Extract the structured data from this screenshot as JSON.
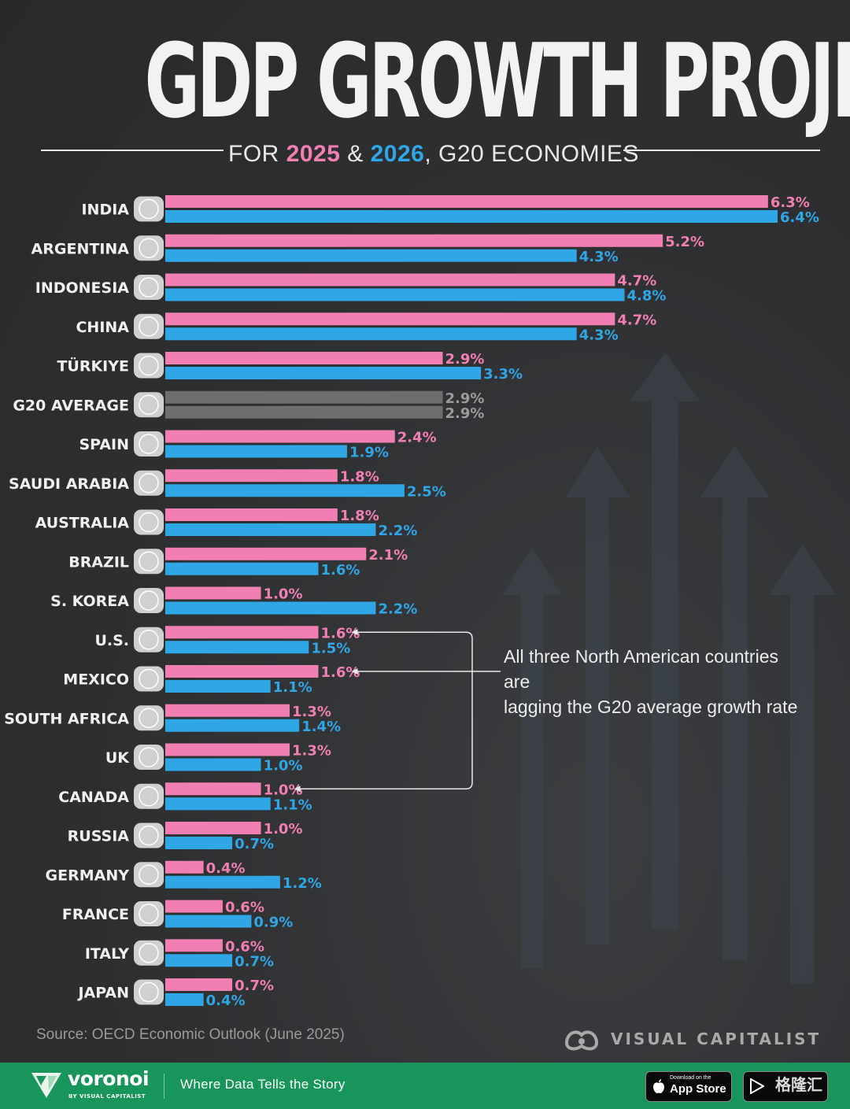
{
  "title": "GDP GROWTH PROJECTIONS",
  "subtitle": {
    "prefix": "FOR ",
    "year1": "2025",
    "amp": " & ",
    "year2": "2026",
    "suffix": ",  G20 ECONOMIES"
  },
  "colors": {
    "y2025": "#f17fb3",
    "y2026": "#2fa6e6",
    "average": "#6e6e6e",
    "average_label": "#9b9b9b"
  },
  "annotation": {
    "line1": "All three North American countries are",
    "line2": "lagging the G20 average growth rate"
  },
  "source": "Source: OECD Economic Outlook (June 2025)",
  "brand": {
    "name": "VISUAL CAPITALIST"
  },
  "footer": {
    "logo_name": "voronoi",
    "logo_sub": "BY VISUAL CAPITALIST",
    "tagline": "Where Data Tells the Story",
    "appstore_small": "Download on the",
    "appstore_big": "App Store",
    "watermark": "格隆汇"
  },
  "chart_data": {
    "type": "bar",
    "orientation": "horizontal",
    "title": "GDP GROWTH PROJECTIONS",
    "subtitle": "FOR 2025 & 2026, G20 ECONOMIES",
    "categories": [
      "INDIA",
      "ARGENTINA",
      "INDONESIA",
      "CHINA",
      "TÜRKIYE",
      "G20 AVERAGE",
      "SPAIN",
      "SAUDI ARABIA",
      "AUSTRALIA",
      "BRAZIL",
      "S. KOREA",
      "U.S.",
      "MEXICO",
      "SOUTH AFRICA",
      "UK",
      "CANADA",
      "RUSSIA",
      "GERMANY",
      "FRANCE",
      "ITALY",
      "JAPAN"
    ],
    "flags": [
      "india",
      "argentina",
      "indonesia",
      "china",
      "turkiye",
      "globe",
      "spain",
      "saudi-arabia",
      "australia",
      "brazil",
      "south-korea",
      "usa",
      "mexico",
      "south-africa",
      "uk",
      "canada",
      "russia",
      "germany",
      "france",
      "italy",
      "japan"
    ],
    "series": [
      {
        "name": "2025",
        "values": [
          6.3,
          5.2,
          4.7,
          4.7,
          2.9,
          2.9,
          2.4,
          1.8,
          1.8,
          2.1,
          1.0,
          1.6,
          1.6,
          1.3,
          1.3,
          1.0,
          1.0,
          0.4,
          0.6,
          0.6,
          0.7
        ]
      },
      {
        "name": "2026",
        "values": [
          6.4,
          4.3,
          4.8,
          4.3,
          3.3,
          2.9,
          1.9,
          2.5,
          2.2,
          1.6,
          2.2,
          1.5,
          1.1,
          1.4,
          1.0,
          1.1,
          0.7,
          1.2,
          0.9,
          0.7,
          0.4
        ]
      }
    ],
    "value_labels": [
      [
        "6.3%",
        "5.2%",
        "4.7%",
        "4.7%",
        "2.9%",
        "2.9%",
        "2.4%",
        "1.8%",
        "1.8%",
        "2.1%",
        "1.0%",
        "1.6%",
        "1.6%",
        "1.3%",
        "1.3%",
        "1.0%",
        "1.0%",
        "0.4%",
        "0.6%",
        "0.6%",
        "0.7%"
      ],
      [
        "6.4%",
        "4.3%",
        "4.8%",
        "4.3%",
        "3.3%",
        "2.9%",
        "1.9%",
        "2.5%",
        "2.2%",
        "1.6%",
        "2.2%",
        "1.5%",
        "1.1%",
        "1.4%",
        "1.0%",
        "1.1%",
        "0.7%",
        "1.2%",
        "0.9%",
        "0.7%",
        "0.4%"
      ]
    ],
    "highlight_category": "G20 AVERAGE",
    "annotated_categories": [
      "U.S.",
      "MEXICO",
      "CANADA"
    ],
    "unit": "%",
    "xlim": [
      0,
      6.4
    ],
    "grid": false,
    "legend": "subtitle"
  }
}
